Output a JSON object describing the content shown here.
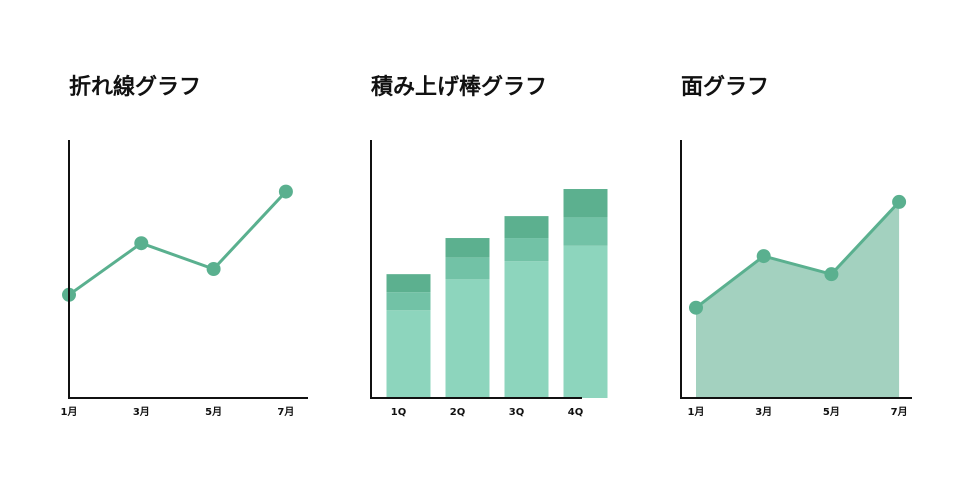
{
  "chart_data": [
    {
      "type": "line",
      "title": "折れ線グラフ",
      "categories": [
        "1月",
        "3月",
        "5月",
        "7月"
      ],
      "values": [
        40,
        60,
        50,
        80
      ],
      "color": "#5ab08f",
      "ylim": [
        0,
        100
      ]
    },
    {
      "type": "stacked_bar",
      "title": "積み上げ棒グラフ",
      "categories": [
        "1Q",
        "2Q",
        "3Q",
        "4Q"
      ],
      "series": [
        {
          "color": "#8dd5bd",
          "values": [
            34,
            46,
            53,
            59
          ]
        },
        {
          "color": "#72c2a6",
          "values": [
            7,
            8.5,
            9,
            11
          ]
        },
        {
          "color": "#5cb08f",
          "values": [
            7,
            7.5,
            8.5,
            11
          ]
        }
      ],
      "ylim": [
        0,
        100
      ]
    },
    {
      "type": "area",
      "title": "面グラフ",
      "categories": [
        "1月",
        "3月",
        "5月",
        "7月"
      ],
      "values": [
        35,
        55,
        48,
        76
      ],
      "color": "#5ab08f",
      "fill": "#a3d1bf",
      "ylim": [
        0,
        100
      ]
    }
  ]
}
